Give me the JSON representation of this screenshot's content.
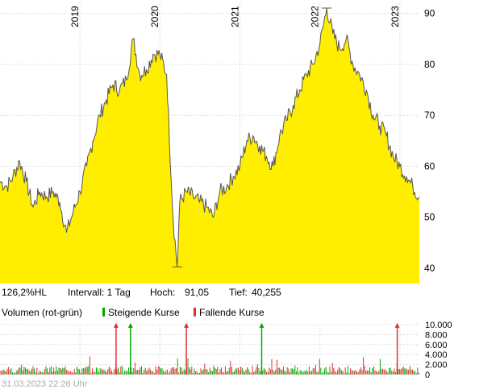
{
  "chart_data": {
    "type": "area",
    "title": "",
    "fill_color": "#ffee00",
    "line_color": "#555555",
    "grid": true,
    "y_range": [
      37,
      92
    ],
    "y_ticks": [
      40,
      50,
      60,
      70,
      80,
      90
    ],
    "year_labels": [
      "2019",
      "2020",
      "2021",
      "2022",
      "2023"
    ],
    "x_range": [
      "2018-01-01",
      "2023-03-31"
    ],
    "year_dates": [
      "2019-01-01",
      "2020-01-01",
      "2021-01-01",
      "2022-01-01",
      "2023-01-01"
    ],
    "series": [
      {
        "x": [
          "2018-01-01",
          "2018-02-01",
          "2018-03-01",
          "2018-04-01",
          "2018-05-01",
          "2018-06-01",
          "2018-07-01",
          "2018-08-01",
          "2018-09-01",
          "2018-10-01",
          "2018-11-01",
          "2018-12-01",
          "2019-01-01",
          "2019-02-01",
          "2019-03-01",
          "2019-04-01",
          "2019-05-01",
          "2019-06-01",
          "2019-07-01",
          "2019-08-01",
          "2019-09-01",
          "2019-10-01",
          "2019-11-01",
          "2019-12-01",
          "2020-01-01",
          "2020-02-01",
          "2020-03-01",
          "2020-03-20",
          "2020-04-01",
          "2020-05-01",
          "2020-06-01",
          "2020-07-01",
          "2020-08-01",
          "2020-09-01",
          "2020-10-01",
          "2020-11-01",
          "2020-12-01",
          "2021-01-01",
          "2021-02-01",
          "2021-03-01",
          "2021-04-01",
          "2021-05-01",
          "2021-06-01",
          "2021-07-01",
          "2021-08-01",
          "2021-09-01",
          "2021-10-01",
          "2021-11-01",
          "2021-12-01",
          "2022-01-01",
          "2022-02-01",
          "2022-03-01",
          "2022-04-01",
          "2022-05-01",
          "2022-06-01",
          "2022-07-01",
          "2022-08-01",
          "2022-09-01",
          "2022-10-01",
          "2022-11-01",
          "2022-12-01",
          "2023-01-01",
          "2023-02-01",
          "2023-03-01",
          "2023-03-31"
        ],
        "y": [
          57,
          56,
          58,
          61,
          57,
          52,
          55,
          54,
          55,
          53,
          47,
          51,
          55,
          60,
          65,
          70,
          73,
          76,
          75,
          77,
          85,
          78,
          79,
          82,
          82,
          78,
          50,
          40.255,
          53,
          55,
          54,
          53,
          52,
          50,
          55,
          56,
          58,
          60,
          65,
          66,
          64,
          62,
          60,
          66,
          69,
          72,
          75,
          78,
          80,
          84,
          91.05,
          86,
          83,
          85,
          80,
          78,
          75,
          70,
          68,
          66,
          62,
          60,
          58,
          56,
          54
        ]
      }
    ],
    "info": {
      "range_pct": "126,2%HL",
      "interval": "Intervall: 1 Tag",
      "high_label": "Hoch:",
      "high_value": "91,05",
      "low_label": "Tief:",
      "low_value": "40,255"
    },
    "volume": {
      "title": "Volumen (rot-grün)",
      "legend_up": "Steigende Kurse",
      "legend_down": "Fallende Kurse",
      "up_color": "#00aa00",
      "down_color": "#dd3333",
      "y_range": [
        0,
        10000
      ],
      "y_ticks": [
        "10.000",
        "8.000",
        "6.000",
        "4.000",
        "2.000",
        "0"
      ],
      "y_tick_values": [
        10000,
        8000,
        6000,
        4000,
        2000,
        0
      ],
      "clipped_spikes": [
        "2019-06-15",
        "2019-08-20",
        "2020-05-01",
        "2021-04-10",
        "2022-12-20"
      ]
    }
  },
  "footer": {
    "timestamp": "31.03.2023 22:26 Uhr"
  }
}
